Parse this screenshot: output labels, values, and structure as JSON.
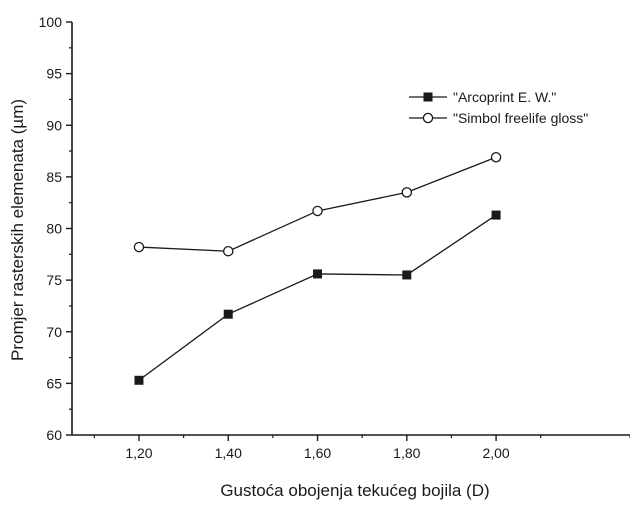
{
  "chart_data": {
    "type": "line",
    "title": "",
    "xlabel": "Gustoća obojenja tekućeg bojila (D)",
    "ylabel": "Promjer rasterskih elemenata (µm)",
    "x": [
      "1,20",
      "1,40",
      "1,60",
      "1,80",
      "2,00"
    ],
    "x_values": [
      1.2,
      1.4,
      1.6,
      1.8,
      2.0
    ],
    "xlim": [
      1.05,
      2.3
    ],
    "ylim": [
      60,
      100
    ],
    "y_ticks": [
      60,
      65,
      70,
      75,
      80,
      85,
      90,
      95,
      100
    ],
    "grid": false,
    "legend_position": "top-right",
    "series": [
      {
        "name": "\"Arcoprint E. W.\"",
        "marker": "filled-square",
        "color": "#1a1a1a",
        "values": [
          65.3,
          71.7,
          75.6,
          75.5,
          81.3
        ]
      },
      {
        "name": "\"Simbol freelife gloss\"",
        "marker": "open-circle",
        "color": "#1a1a1a",
        "values": [
          78.2,
          77.8,
          81.7,
          83.5,
          86.9
        ]
      }
    ]
  }
}
